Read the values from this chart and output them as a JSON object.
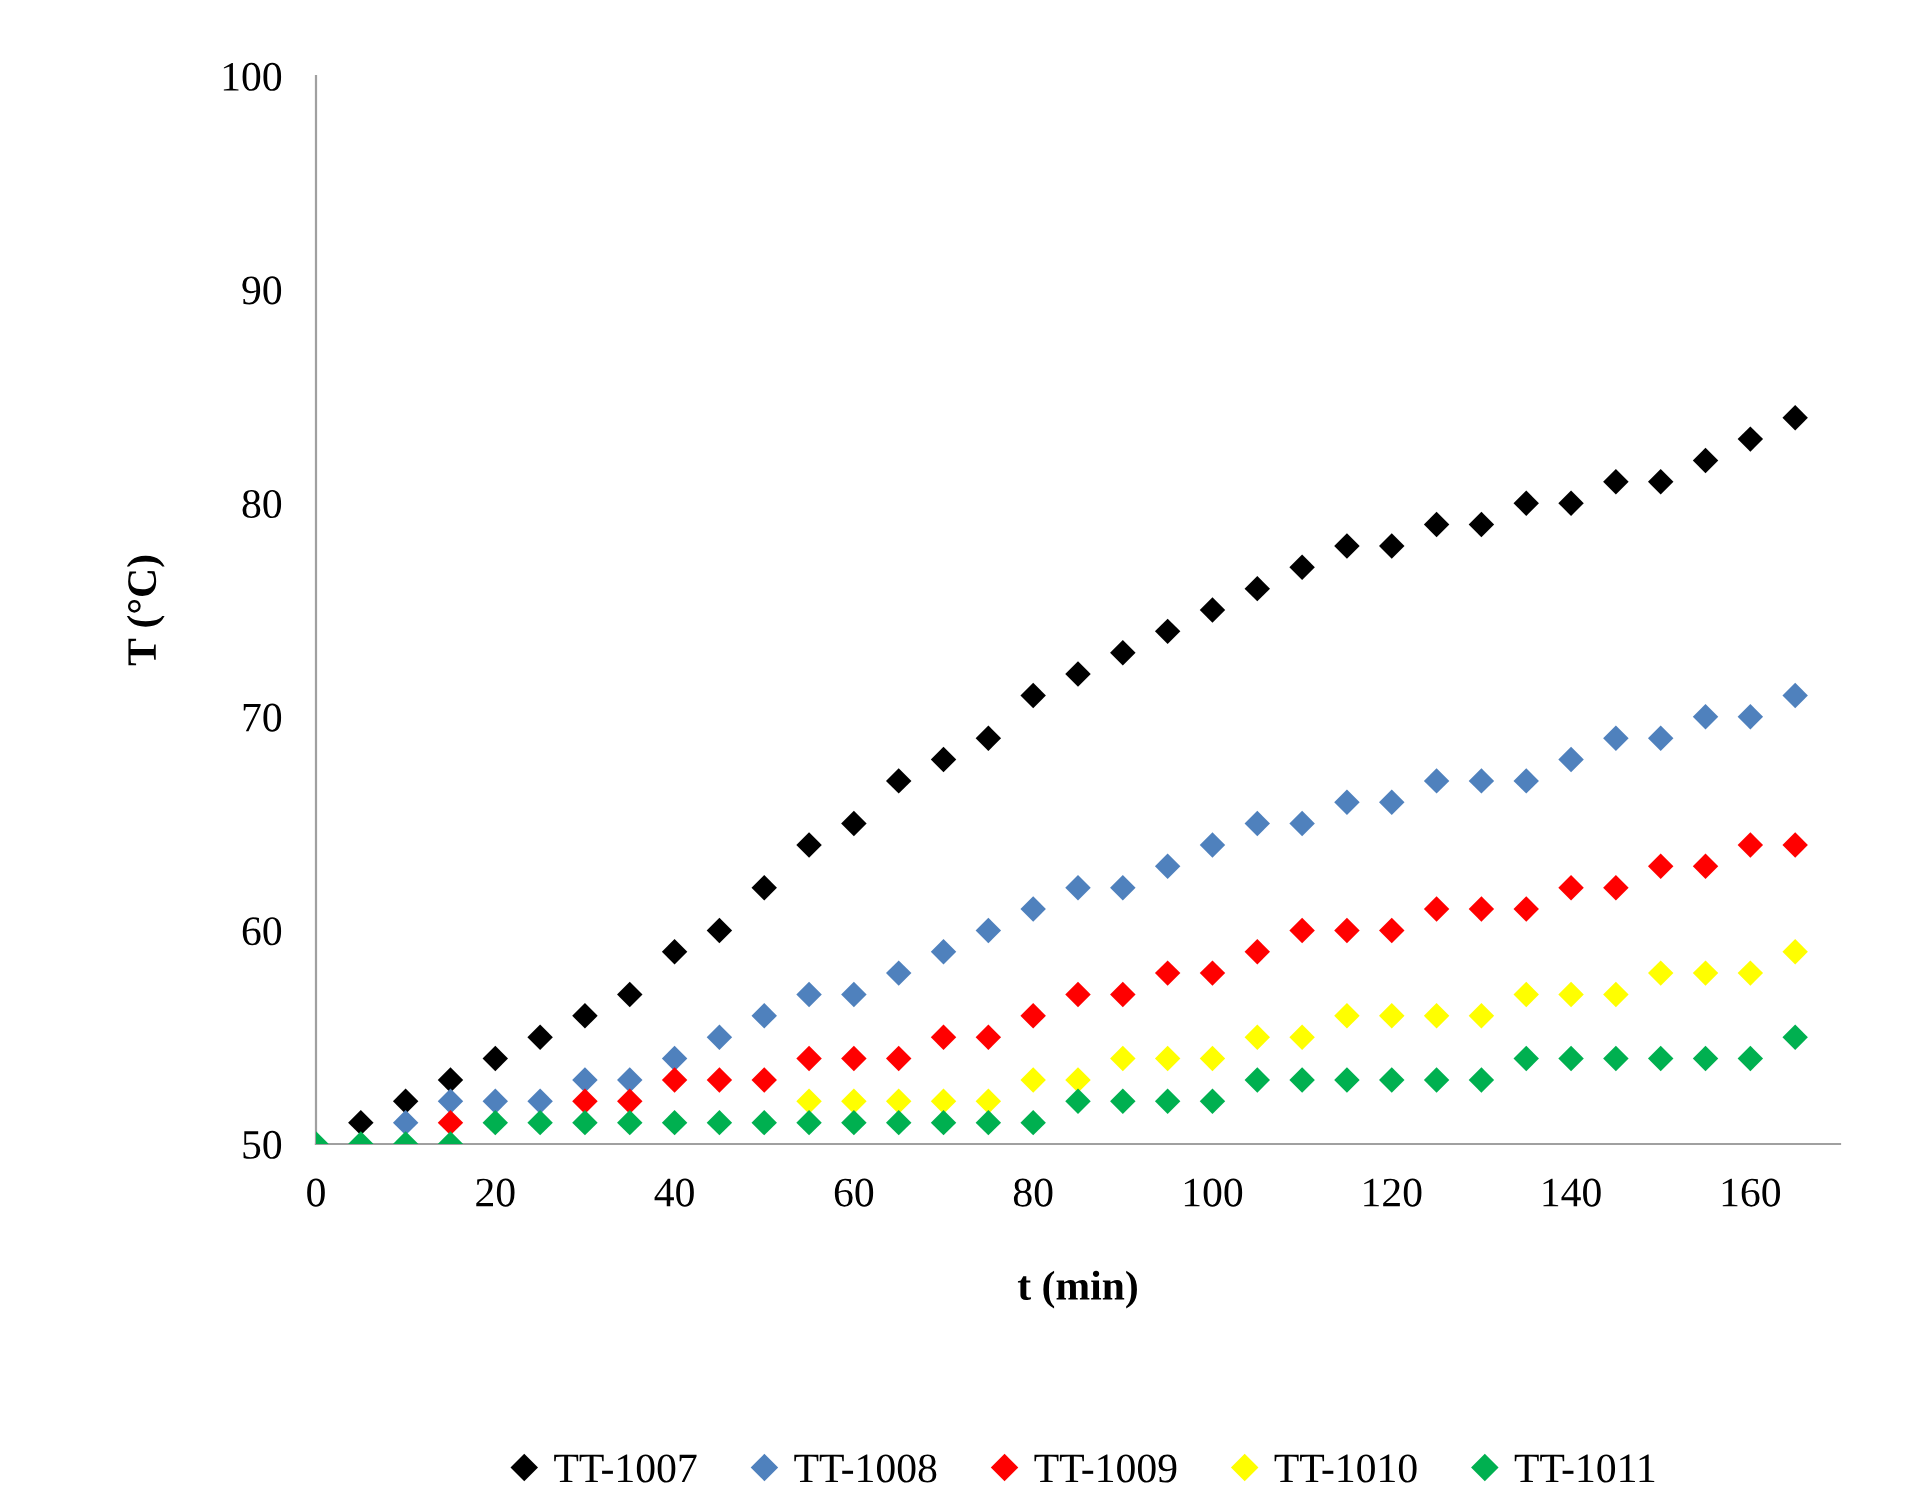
{
  "chart_data": {
    "type": "scatter",
    "xlabel": "t (min)",
    "ylabel": "T (°C)",
    "x": [
      0,
      5,
      10,
      15,
      20,
      25,
      30,
      35,
      40,
      45,
      50,
      55,
      60,
      65,
      70,
      75,
      80,
      85,
      90,
      95,
      100,
      105,
      110,
      115,
      120,
      125,
      130,
      135,
      140,
      145,
      150,
      155,
      160,
      165
    ],
    "series": [
      {
        "name": "TT-1007",
        "color": "#000000",
        "values": [
          null,
          51,
          52,
          53,
          54,
          55,
          56,
          57,
          59,
          60,
          62,
          64,
          65,
          67,
          68,
          69,
          71,
          72,
          73,
          74,
          75,
          76,
          77,
          78,
          78,
          79,
          79,
          80,
          80,
          81,
          81,
          82,
          83,
          84
        ]
      },
      {
        "name": "TT-1008",
        "color": "#4f81bd",
        "values": [
          null,
          null,
          51,
          52,
          52,
          52,
          53,
          53,
          54,
          55,
          56,
          57,
          57,
          58,
          59,
          60,
          61,
          62,
          62,
          63,
          64,
          65,
          65,
          66,
          66,
          67,
          67,
          67,
          68,
          69,
          69,
          70,
          70,
          71
        ]
      },
      {
        "name": "TT-1009",
        "color": "#ff0000",
        "values": [
          null,
          null,
          null,
          51,
          null,
          null,
          52,
          52,
          53,
          53,
          53,
          54,
          54,
          54,
          55,
          55,
          56,
          57,
          57,
          58,
          58,
          59,
          60,
          60,
          60,
          61,
          61,
          61,
          62,
          62,
          63,
          63,
          64,
          64
        ]
      },
      {
        "name": "TT-1010",
        "color": "#ffff00",
        "values": [
          null,
          null,
          null,
          null,
          null,
          null,
          null,
          null,
          null,
          null,
          null,
          52,
          52,
          52,
          52,
          52,
          53,
          53,
          54,
          54,
          54,
          55,
          55,
          56,
          56,
          56,
          56,
          57,
          57,
          57,
          58,
          58,
          58,
          59
        ]
      },
      {
        "name": "TT-1011",
        "color": "#00b050",
        "values": [
          50,
          50,
          50,
          50,
          51,
          51,
          51,
          51,
          51,
          51,
          51,
          51,
          51,
          51,
          51,
          51,
          51,
          52,
          52,
          52,
          52,
          53,
          53,
          53,
          53,
          53,
          53,
          54,
          54,
          54,
          54,
          54,
          54,
          55
        ]
      }
    ],
    "xlim": [
      0,
      170
    ],
    "xticks": [
      0,
      20,
      40,
      60,
      80,
      100,
      120,
      140,
      160
    ],
    "ylim": [
      50,
      100
    ],
    "yticks": [
      50,
      60,
      70,
      80,
      90,
      100
    ],
    "marker": "diamond",
    "grid": false,
    "legend": "bottom"
  }
}
